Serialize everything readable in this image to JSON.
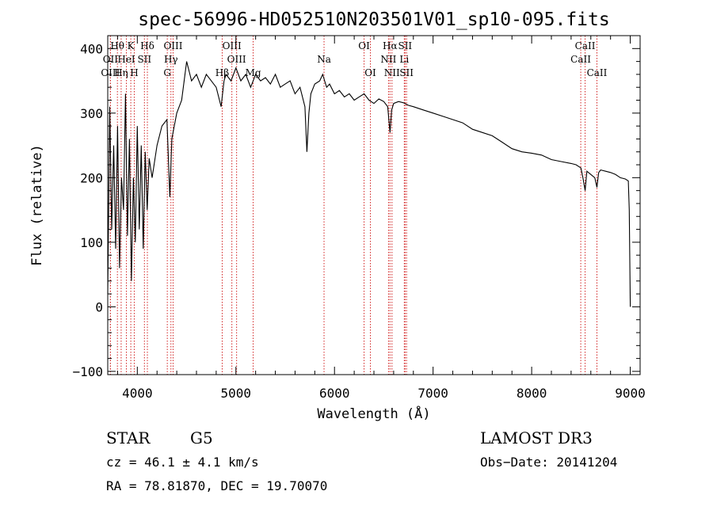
{
  "chart_data": {
    "type": "line",
    "title": "spec-56996-HD052510N203501V01_sp10-095.fits",
    "xlabel": "Wavelength (Å)",
    "ylabel": "Flux (relative)",
    "xlim": [
      3700,
      9100
    ],
    "ylim": [
      -105,
      420
    ],
    "xticks": [
      "4000",
      "5000",
      "6000",
      "7000",
      "8000",
      "9000"
    ],
    "yticks": [
      "−100",
      "0",
      "100",
      "200",
      "300",
      "400"
    ],
    "xtick_values": [
      4000,
      5000,
      6000,
      7000,
      8000,
      9000
    ],
    "ytick_values": [
      -100,
      0,
      100,
      200,
      300,
      400
    ],
    "series": [
      {
        "name": "spectrum",
        "x": [
          3700,
          3720,
          3740,
          3760,
          3780,
          3800,
          3820,
          3840,
          3860,
          3880,
          3900,
          3920,
          3940,
          3960,
          3980,
          4000,
          4020,
          4040,
          4060,
          4080,
          4100,
          4120,
          4150,
          4200,
          4250,
          4300,
          4330,
          4350,
          4400,
          4450,
          4500,
          4550,
          4600,
          4650,
          4700,
          4750,
          4800,
          4850,
          4880,
          4900,
          4950,
          5000,
          5050,
          5100,
          5150,
          5200,
          5250,
          5300,
          5350,
          5400,
          5450,
          5500,
          5550,
          5600,
          5650,
          5700,
          5720,
          5740,
          5760,
          5800,
          5850,
          5880,
          5900,
          5920,
          5950,
          6000,
          6050,
          6100,
          6150,
          6200,
          6250,
          6300,
          6350,
          6400,
          6450,
          6500,
          6540,
          6563,
          6580,
          6600,
          6650,
          6700,
          6750,
          6800,
          6900,
          7000,
          7100,
          7200,
          7300,
          7400,
          7500,
          7600,
          7700,
          7800,
          7900,
          8000,
          8100,
          8200,
          8300,
          8400,
          8450,
          8500,
          8520,
          8542,
          8560,
          8600,
          8640,
          8662,
          8680,
          8700,
          8750,
          8800,
          8850,
          8900,
          8950,
          8980,
          8990,
          9000
        ],
        "values": [
          20,
          310,
          120,
          250,
          90,
          280,
          60,
          200,
          150,
          330,
          110,
          260,
          40,
          200,
          100,
          280,
          120,
          250,
          90,
          240,
          150,
          230,
          200,
          250,
          280,
          290,
          170,
          260,
          300,
          320,
          380,
          350,
          360,
          340,
          360,
          350,
          340,
          310,
          350,
          360,
          350,
          370,
          350,
          360,
          340,
          360,
          350,
          355,
          345,
          360,
          340,
          345,
          350,
          330,
          340,
          310,
          240,
          300,
          330,
          345,
          350,
          360,
          350,
          340,
          345,
          330,
          335,
          325,
          330,
          320,
          325,
          330,
          320,
          315,
          322,
          318,
          310,
          270,
          305,
          315,
          318,
          316,
          312,
          310,
          305,
          300,
          295,
          290,
          285,
          275,
          270,
          265,
          255,
          245,
          240,
          238,
          235,
          228,
          225,
          222,
          220,
          215,
          200,
          180,
          210,
          205,
          200,
          185,
          208,
          212,
          210,
          208,
          205,
          200,
          198,
          195,
          150,
          0
        ]
      }
    ],
    "line_markers": [
      {
        "label": "Hθ",
        "x": 3798,
        "row": 1
      },
      {
        "label": "OII",
        "x": 3727,
        "row": 2
      },
      {
        "label": "OIII",
        "x": 3727,
        "row": 3
      },
      {
        "label": "Hη",
        "x": 3836,
        "row": 3
      },
      {
        "label": "K",
        "x": 3934,
        "row": 1
      },
      {
        "label": "HeI",
        "x": 3889,
        "row": 2
      },
      {
        "label": "H",
        "x": 3969,
        "row": 3
      },
      {
        "label": "Hδ",
        "x": 4102,
        "row": 1
      },
      {
        "label": "SII",
        "x": 4072,
        "row": 2
      },
      {
        "label": "OIII",
        "x": 4363,
        "row": 1
      },
      {
        "label": "Hγ",
        "x": 4341,
        "row": 2
      },
      {
        "label": "G",
        "x": 4304,
        "row": 3
      },
      {
        "label": "OIII",
        "x": 4959,
        "row": 1
      },
      {
        "label": "OIII",
        "x": 5007,
        "row": 2
      },
      {
        "label": "Hβ",
        "x": 4861,
        "row": 3
      },
      {
        "label": "Mg",
        "x": 5175,
        "row": 3
      },
      {
        "label": "Na",
        "x": 5894,
        "row": 2
      },
      {
        "label": "OI",
        "x": 6300,
        "row": 1
      },
      {
        "label": "OI",
        "x": 6364,
        "row": 3
      },
      {
        "label": "Hα",
        "x": 6563,
        "row": 1
      },
      {
        "label": "NII",
        "x": 6548,
        "row": 2
      },
      {
        "label": "NII",
        "x": 6583,
        "row": 3
      },
      {
        "label": "SII",
        "x": 6716,
        "row": 1
      },
      {
        "label": "Li",
        "x": 6708,
        "row": 2
      },
      {
        "label": "SII",
        "x": 6731,
        "row": 3
      },
      {
        "label": "CaII",
        "x": 8542,
        "row": 1
      },
      {
        "label": "CaII",
        "x": 8498,
        "row": 2
      },
      {
        "label": "CaII",
        "x": 8662,
        "row": 3
      }
    ]
  },
  "info": {
    "object_type": "STAR",
    "subclass": "G5",
    "survey": "LAMOST DR3",
    "cz": "cz = 46.1 ± 4.1 km/s",
    "obs_date": "Obs−Date: 20141204",
    "coords": "RA =  78.81870, DEC =  19.70070"
  },
  "colors": {
    "spectrum": "#000000",
    "marker_lines": "#d22323",
    "axes": "#000000"
  }
}
